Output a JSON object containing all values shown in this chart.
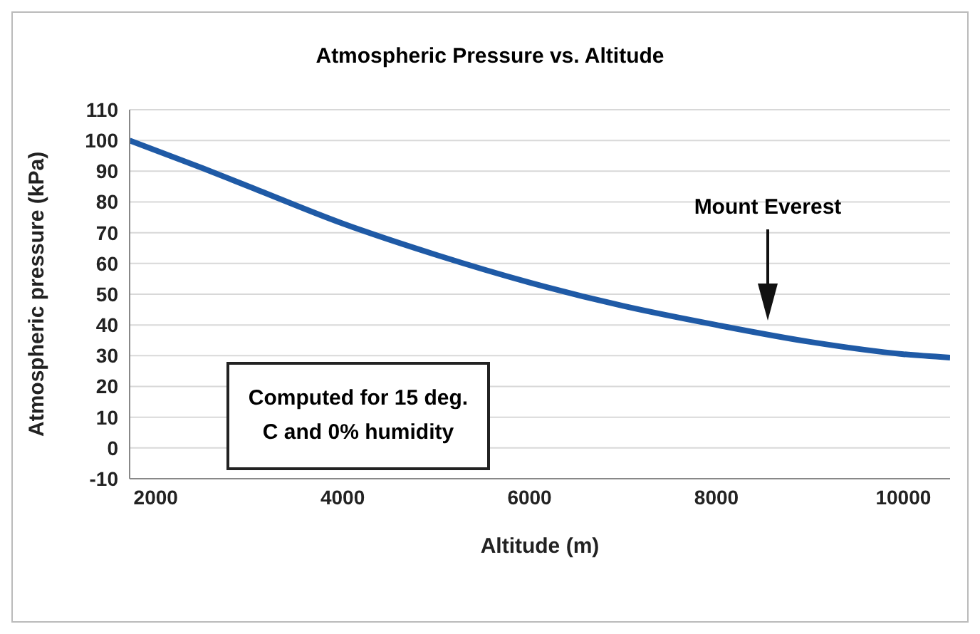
{
  "chart_data": {
    "type": "line",
    "title": "Atmospheric Pressure vs. Altitude",
    "xlabel": "Altitude (m)",
    "ylabel": "Atmospheric pressure (kPa)",
    "x": [
      1720,
      2500,
      3000,
      4000,
      5000,
      6000,
      7000,
      8000,
      9000,
      10000,
      10500
    ],
    "series": [
      {
        "color": "#1f5aa6",
        "values": [
          100,
          91,
          85,
          73,
          62.8,
          53.8,
          46.2,
          40,
          34.5,
          30.5,
          29.4
        ]
      }
    ],
    "xlim": [
      1720,
      10500
    ],
    "xticks": [
      2000,
      4000,
      6000,
      8000,
      10000
    ],
    "ylim": [
      -10,
      110
    ],
    "yticks": [
      -10,
      0,
      10,
      20,
      30,
      40,
      50,
      60,
      70,
      80,
      90,
      100,
      110
    ],
    "grid": "y",
    "marker": "none",
    "line_style": "solid",
    "annotations": [
      "Mount Everest",
      "Computed for 15 deg. C and 0% humidity"
    ]
  }
}
